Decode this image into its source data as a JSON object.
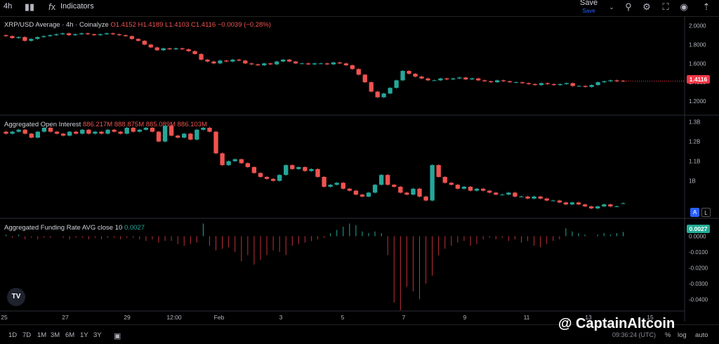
{
  "toolbar": {
    "interval": "4h",
    "indicators_label": "Indicators",
    "save_label": "Save",
    "save_sub": "Save"
  },
  "pane1": {
    "symbol": "XRP/USD Average · 4h · Coinalyze",
    "o": "O1.4152",
    "h": "H1.4189",
    "l": "L1.4103",
    "c": "C1.4116",
    "change": "−0.0039 (−0.28%)",
    "price_badge": "1.4116"
  },
  "pane2": {
    "title": "Aggregated Open Interest",
    "values": "886.217M  888.875M  885.089M  886.103M"
  },
  "pane3": {
    "title": "Aggregated Funding Rate AVG close 10",
    "value": "0.0027",
    "badge": "0.0027"
  },
  "al": {
    "a": "A",
    "l": "L"
  },
  "bottom": {
    "ranges": [
      "1D",
      "7D",
      "1M",
      "3M",
      "6M",
      "1Y",
      "3Y"
    ],
    "clock": "09:36:24 (UTC)",
    "pct": "%",
    "log": "log",
    "auto": "auto"
  },
  "watermark": "@ CaptainAltcoin",
  "tv_logo": "TV",
  "colors": {
    "up": "#26a69a",
    "down": "#ef5350",
    "badge_red": "#f23645",
    "badge_green": "#22ab94"
  },
  "chart_data": [
    {
      "type": "candlestick",
      "title": "XRP/USD Average · 4h · Coinalyze",
      "y_ticks": [
        "2.0000",
        "1.8000",
        "1.6000",
        "1.4000",
        "1.2000"
      ],
      "ylim": [
        1.08,
        2.05
      ],
      "x_ticks": [
        "25",
        "27",
        "29",
        "12:00",
        "Feb",
        "3",
        "5",
        "7",
        "9",
        "11",
        "13",
        "15"
      ],
      "close": [
        1.89,
        1.87,
        1.88,
        1.84,
        1.86,
        1.88,
        1.89,
        1.9,
        1.91,
        1.92,
        1.9,
        1.91,
        1.92,
        1.91,
        1.9,
        1.91,
        1.92,
        1.91,
        1.9,
        1.89,
        1.86,
        1.84,
        1.8,
        1.77,
        1.74,
        1.76,
        1.75,
        1.76,
        1.75,
        1.73,
        1.7,
        1.64,
        1.62,
        1.6,
        1.63,
        1.62,
        1.64,
        1.63,
        1.6,
        1.59,
        1.58,
        1.6,
        1.59,
        1.62,
        1.64,
        1.62,
        1.6,
        1.6,
        1.59,
        1.6,
        1.6,
        1.59,
        1.61,
        1.6,
        1.58,
        1.54,
        1.48,
        1.4,
        1.3,
        1.24,
        1.28,
        1.34,
        1.42,
        1.52,
        1.49,
        1.46,
        1.44,
        1.42,
        1.42,
        1.44,
        1.43,
        1.44,
        1.45,
        1.43,
        1.44,
        1.42,
        1.41,
        1.4,
        1.42,
        1.41,
        1.4,
        1.4,
        1.39,
        1.38,
        1.37,
        1.39,
        1.38,
        1.37,
        1.38,
        1.39,
        1.36,
        1.36,
        1.35,
        1.37,
        1.4,
        1.41,
        1.42,
        1.41,
        1.4116
      ],
      "open": [
        1.9,
        1.89,
        1.87,
        1.88,
        1.84,
        1.86,
        1.88,
        1.89,
        1.9,
        1.91,
        1.92,
        1.9,
        1.91,
        1.92,
        1.91,
        1.9,
        1.91,
        1.92,
        1.91,
        1.9,
        1.89,
        1.86,
        1.84,
        1.8,
        1.77,
        1.74,
        1.76,
        1.75,
        1.76,
        1.75,
        1.73,
        1.7,
        1.64,
        1.62,
        1.6,
        1.63,
        1.62,
        1.64,
        1.63,
        1.6,
        1.59,
        1.58,
        1.6,
        1.59,
        1.62,
        1.64,
        1.62,
        1.6,
        1.6,
        1.59,
        1.6,
        1.6,
        1.59,
        1.61,
        1.6,
        1.58,
        1.54,
        1.48,
        1.4,
        1.3,
        1.24,
        1.28,
        1.34,
        1.42,
        1.52,
        1.49,
        1.46,
        1.44,
        1.42,
        1.42,
        1.44,
        1.43,
        1.44,
        1.45,
        1.43,
        1.44,
        1.42,
        1.41,
        1.4,
        1.42,
        1.41,
        1.4,
        1.4,
        1.39,
        1.38,
        1.37,
        1.39,
        1.38,
        1.37,
        1.38,
        1.39,
        1.36,
        1.36,
        1.35,
        1.37,
        1.4,
        1.41,
        1.42,
        1.4152
      ]
    },
    {
      "type": "candlestick",
      "title": "Aggregated Open Interest",
      "y_ticks": [
        "1.3B",
        "1.2B",
        "1.1B",
        "1B"
      ],
      "ylim": [
        0.82,
        1.32
      ],
      "close": [
        1.24,
        1.25,
        1.26,
        1.24,
        1.22,
        1.25,
        1.27,
        1.25,
        1.24,
        1.23,
        1.25,
        1.24,
        1.26,
        1.24,
        1.25,
        1.24,
        1.26,
        1.25,
        1.24,
        1.27,
        1.25,
        1.26,
        1.27,
        1.25,
        1.2,
        1.28,
        1.23,
        1.22,
        1.24,
        1.21,
        1.26,
        1.27,
        1.25,
        1.14,
        1.08,
        1.1,
        1.11,
        1.09,
        1.07,
        1.04,
        1.02,
        1.01,
        1.0,
        1.03,
        1.08,
        1.06,
        1.07,
        1.05,
        1.06,
        1.02,
        0.97,
        0.98,
        0.99,
        0.96,
        0.95,
        0.93,
        0.92,
        0.94,
        0.98,
        1.03,
        0.98,
        0.97,
        0.94,
        0.93,
        0.96,
        0.92,
        0.9,
        1.08,
        1.02,
        0.99,
        0.98,
        0.96,
        0.97,
        0.95,
        0.96,
        0.95,
        0.94,
        0.93,
        0.93,
        0.94,
        0.92,
        0.92,
        0.91,
        0.92,
        0.91,
        0.9,
        0.9,
        0.89,
        0.88,
        0.89,
        0.88,
        0.87,
        0.86,
        0.87,
        0.88,
        0.87,
        0.87,
        0.886
      ],
      "open": [
        1.25,
        1.24,
        1.25,
        1.26,
        1.24,
        1.22,
        1.25,
        1.27,
        1.25,
        1.24,
        1.23,
        1.25,
        1.24,
        1.26,
        1.24,
        1.25,
        1.24,
        1.26,
        1.25,
        1.24,
        1.27,
        1.25,
        1.26,
        1.27,
        1.25,
        1.2,
        1.28,
        1.23,
        1.22,
        1.24,
        1.21,
        1.26,
        1.27,
        1.25,
        1.14,
        1.08,
        1.1,
        1.11,
        1.09,
        1.07,
        1.04,
        1.02,
        1.01,
        1.0,
        1.03,
        1.08,
        1.06,
        1.07,
        1.05,
        1.06,
        1.02,
        0.97,
        0.98,
        0.99,
        0.96,
        0.95,
        0.93,
        0.92,
        0.94,
        0.98,
        1.03,
        0.98,
        0.97,
        0.94,
        0.93,
        0.96,
        0.92,
        0.9,
        1.08,
        1.02,
        0.99,
        0.98,
        0.96,
        0.97,
        0.95,
        0.96,
        0.95,
        0.94,
        0.93,
        0.93,
        0.94,
        0.92,
        0.92,
        0.91,
        0.92,
        0.91,
        0.9,
        0.9,
        0.89,
        0.88,
        0.89,
        0.88,
        0.87,
        0.86,
        0.87,
        0.88,
        0.87,
        0.886
      ]
    },
    {
      "type": "bar",
      "title": "Aggregated Funding Rate AVG close 10",
      "y_ticks": [
        "0.0000",
        "-0.0100",
        "-0.0200",
        "-0.0300",
        "-0.0400"
      ],
      "ylim": [
        -0.047,
        0.01
      ],
      "values": [
        0.001,
        -0.001,
        0.001,
        -0.002,
        -0.001,
        -0.002,
        -0.001,
        -0.001,
        0.0,
        -0.001,
        -0.002,
        -0.001,
        -0.001,
        -0.002,
        -0.001,
        -0.002,
        -0.001,
        -0.001,
        -0.002,
        -0.001,
        -0.001,
        -0.002,
        -0.003,
        -0.002,
        -0.004,
        -0.003,
        -0.003,
        -0.005,
        -0.006,
        -0.005,
        -0.004,
        0.008,
        -0.006,
        -0.009,
        -0.008,
        -0.007,
        -0.01,
        -0.016,
        -0.012,
        -0.018,
        -0.015,
        -0.012,
        -0.009,
        -0.01,
        -0.012,
        -0.006,
        -0.005,
        -0.004,
        -0.003,
        -0.002,
        -0.001,
        0.002,
        0.004,
        0.006,
        0.008,
        0.007,
        0.003,
        0.002,
        0.003,
        0.002,
        -0.012,
        -0.042,
        -0.047,
        -0.032,
        -0.035,
        -0.04,
        -0.03,
        -0.025,
        -0.012,
        -0.008,
        -0.006,
        -0.004,
        -0.003,
        -0.006,
        -0.005,
        -0.002,
        -0.001,
        -0.002,
        -0.001,
        -0.003,
        -0.002,
        -0.004,
        -0.003,
        -0.006,
        -0.007,
        -0.005,
        -0.003,
        -0.002,
        0.005,
        0.003,
        0.002,
        0.001,
        0.0,
        0.001,
        0.002,
        0.001,
        0.002,
        0.0027
      ]
    }
  ]
}
